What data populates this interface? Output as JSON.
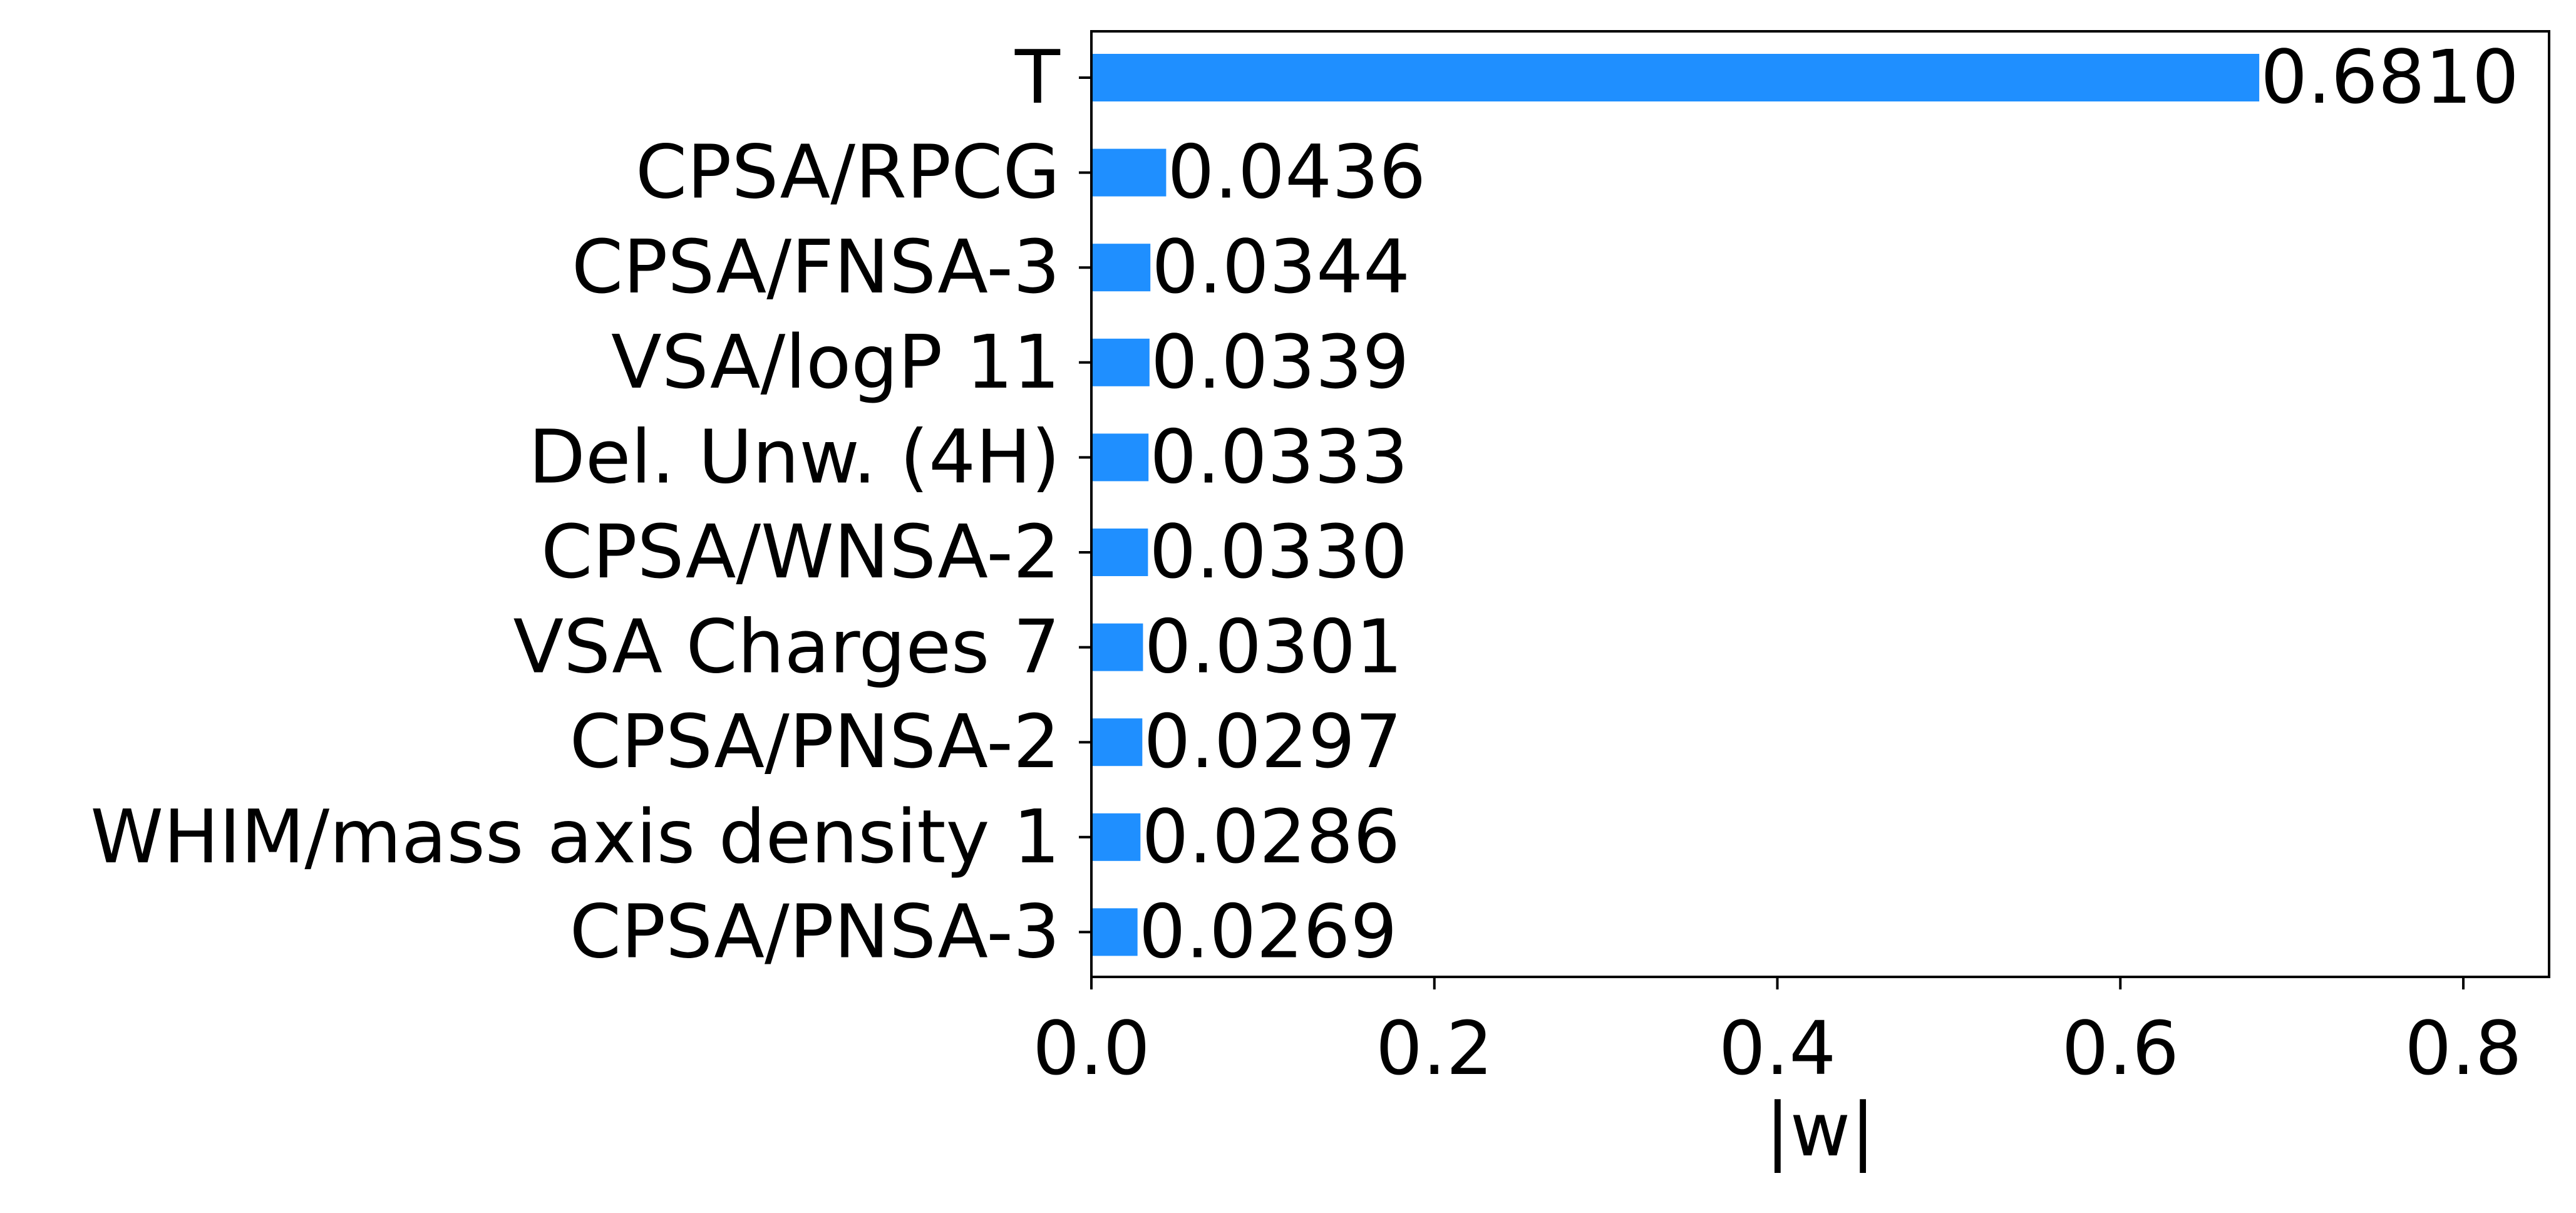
{
  "chart_data": {
    "type": "bar",
    "orientation": "horizontal",
    "categories": [
      "T",
      "CPSA/RPCG",
      "CPSA/FNSA-3",
      "VSA/logP 11",
      "Del. Unw. (4H)",
      "CPSA/WNSA-2",
      "VSA Charges 7",
      "CPSA/PNSA-2",
      "WHIM/mass axis density 1",
      "CPSA/PNSA-3"
    ],
    "values": [
      0.681,
      0.0436,
      0.0344,
      0.0339,
      0.0333,
      0.033,
      0.0301,
      0.0297,
      0.0286,
      0.0269
    ],
    "value_labels": [
      "0.6810",
      "0.0436",
      "0.0344",
      "0.0339",
      "0.0333",
      "0.0330",
      "0.0301",
      "0.0297",
      "0.0286",
      "0.0269"
    ],
    "xlabel": "|w|",
    "ylabel": "",
    "title": "",
    "xlim": [
      0,
      0.85
    ],
    "xticks": [
      0.0,
      0.2,
      0.4,
      0.6,
      0.8
    ],
    "xtick_labels": [
      "0.0",
      "0.2",
      "0.4",
      "0.6",
      "0.8"
    ],
    "grid": false,
    "legend": "none",
    "bar_color": "#1f8fff"
  }
}
